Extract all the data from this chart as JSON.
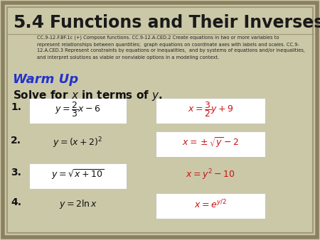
{
  "bg_color": "#cbc8a8",
  "border_outer_color": "#8a8060",
  "border_inner_color": "#a09878",
  "title_num": "5.4",
  "title_text": "Functions and Their Inverses",
  "subtitle_text": "CC.9-12.F.BF.1c (+) Compose functions. CC.9-12.A.CED.2 Create equations in two or more variables to\nrepresent relationships between quantities;  graph equations on coordinate axes with labels and scales. CC.9-\n12.A.CED.3 Represent constraints by equations or inequalities,  and by systems of equations and/or inequalities,\nand interpret solutions as viable or nonviable options in a modeling context.",
  "warm_up": "Warm Up",
  "solve_text": "Solve for ",
  "title_color": "#1a1a1a",
  "subtitle_color": "#222222",
  "warm_up_color": "#2233cc",
  "solve_color": "#111111",
  "num_color": "#111111",
  "lhs_color": "#111111",
  "rhs_color": "#cc1111",
  "box_face": "#ffffff",
  "box_edge": "#bbbbaa",
  "lhs_boxes": [
    true,
    false,
    true,
    false
  ],
  "rhs_boxes": [
    true,
    true,
    false,
    true
  ],
  "problem_nums": [
    "1.",
    "2.",
    "3.",
    "4."
  ],
  "lhs_exprs": [
    "$y = \\dfrac{2}{3}x - 6$",
    "$y = (x + 2)^{2}$",
    "$y = \\sqrt{x + 10}$",
    "$y = 2\\ln x$"
  ],
  "rhs_exprs": [
    "$x = \\dfrac{3}{2}y + 9$",
    "$x = \\pm\\sqrt{y} - 2$",
    "$x = y^{2} - 10$",
    "$x = e^{y/2}$"
  ]
}
